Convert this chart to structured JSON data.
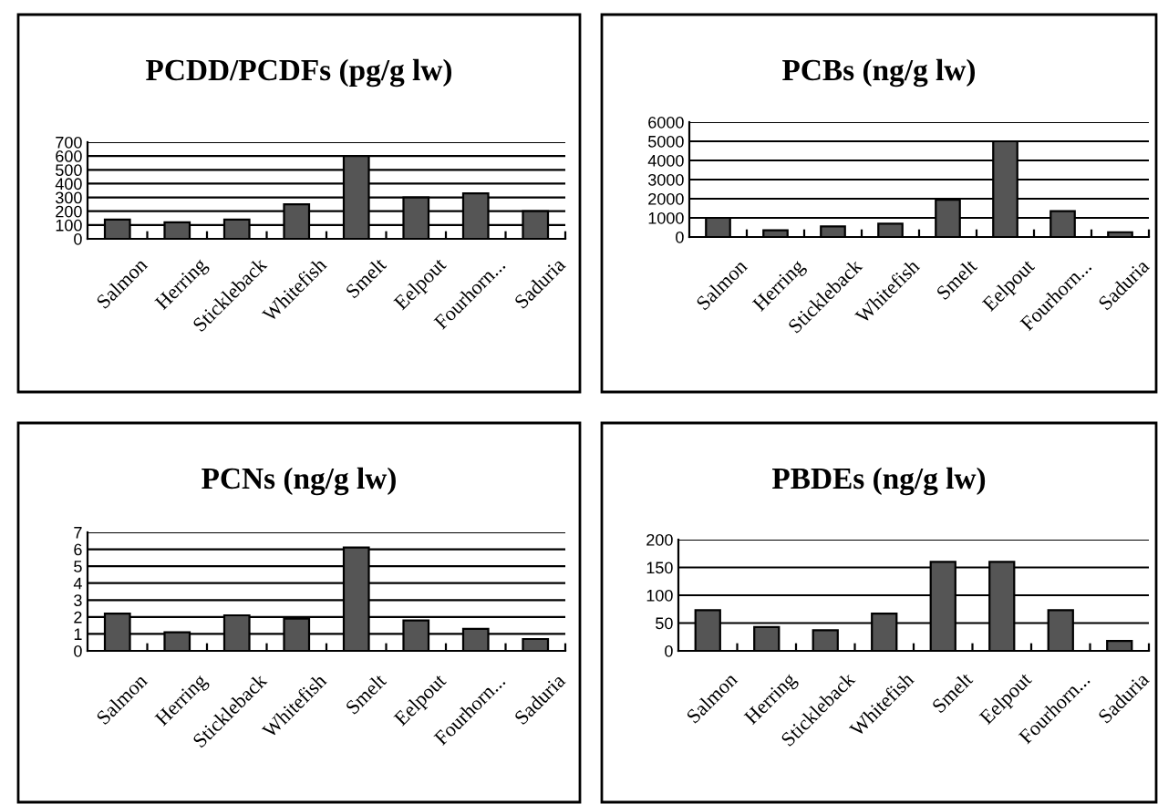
{
  "chart_data": [
    {
      "type": "bar",
      "title": "PCDD/PCDFs (pg/g lw)",
      "categories": [
        "Salmon",
        "Herring",
        "Stickleback",
        "Whitefish",
        "Smelt",
        "Eelpout",
        "Fourhorn...",
        "Saduria"
      ],
      "values": [
        140,
        120,
        140,
        250,
        600,
        300,
        330,
        200
      ],
      "color": "#555555",
      "ylim": [
        0,
        700
      ],
      "yticks": [
        0,
        100,
        200,
        300,
        400,
        500,
        600,
        700
      ],
      "grid": "y"
    },
    {
      "type": "bar",
      "title": "PCBs (ng/g lw)",
      "categories": [
        "Salmon",
        "Herring",
        "Stickleback",
        "Whitefish",
        "Smelt",
        "Eelpout",
        "Fourhorn...",
        "Saduria"
      ],
      "values": [
        1000,
        350,
        550,
        700,
        1950,
        5000,
        1350,
        250
      ],
      "color": "#555555",
      "ylim": [
        0,
        6000
      ],
      "yticks": [
        0,
        1000,
        2000,
        3000,
        4000,
        5000,
        6000
      ],
      "grid": "y"
    },
    {
      "type": "bar",
      "title": "PCNs (ng/g lw)",
      "categories": [
        "Salmon",
        "Herring",
        "Stickleback",
        "Whitefish",
        "Smelt",
        "Eelpout",
        "Fourhorn...",
        "Saduria"
      ],
      "values": [
        2.2,
        1.1,
        2.1,
        1.9,
        6.1,
        1.8,
        1.3,
        0.7
      ],
      "color": "#555555",
      "ylim": [
        0,
        7
      ],
      "yticks": [
        0,
        1,
        2,
        3,
        4,
        5,
        6,
        7
      ],
      "grid": "y"
    },
    {
      "type": "bar",
      "title": "PBDEs (ng/g lw)",
      "categories": [
        "Salmon",
        "Herring",
        "Stickleback",
        "Whitefish",
        "Smelt",
        "Eelpout",
        "Fourhorn...",
        "Saduria"
      ],
      "values": [
        73,
        43,
        37,
        67,
        160,
        160,
        73,
        18
      ],
      "color": "#555555",
      "ylim": [
        0,
        200
      ],
      "yticks": [
        0,
        50,
        100,
        150,
        200
      ],
      "grid": "y"
    }
  ]
}
